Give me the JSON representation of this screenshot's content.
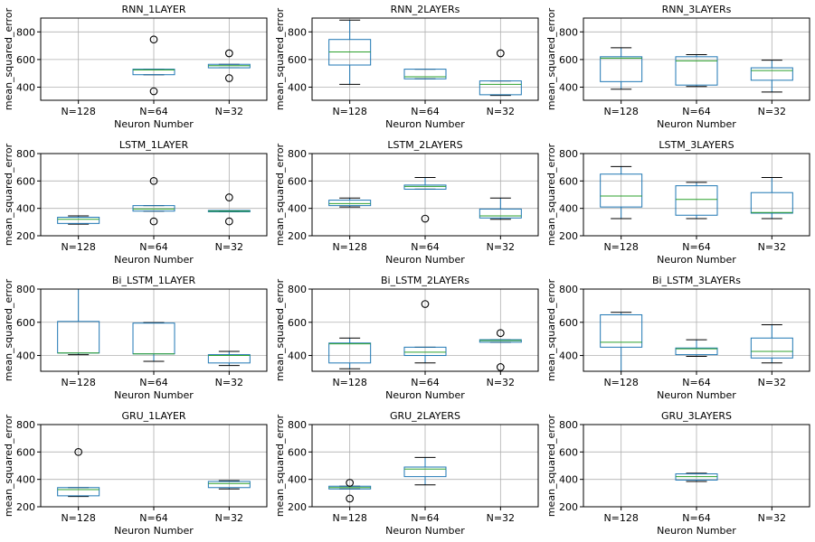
{
  "colors": {
    "box": "#1f77b4",
    "median": "#2ca02c",
    "grid": "#b0b0b0",
    "axis": "#000000",
    "flier": "#000000"
  },
  "chart_data": [
    {
      "type": "box",
      "title": "RNN_1LAYER",
      "xlabel": "Neuron Number",
      "ylabel": "mean_squared_error",
      "categories": [
        "N=128",
        "N=64",
        "N=32"
      ],
      "ylim": [
        305,
        900
      ],
      "yticks": [
        400,
        600,
        800
      ],
      "grid": true,
      "boxes": [
        null,
        {
          "whislo": 490,
          "q1": 490,
          "med": 525,
          "q3": 530,
          "whishi": 530,
          "fliers": [
            745,
            370
          ]
        },
        {
          "whislo": 540,
          "q1": 540,
          "med": 555,
          "q3": 565,
          "whishi": 565,
          "fliers": [
            645,
            465
          ]
        }
      ]
    },
    {
      "type": "box",
      "title": "RNN_2LAYERs",
      "xlabel": "Neuron Number",
      "ylabel": "mean_squared_error",
      "categories": [
        "N=128",
        "N=64",
        "N=32"
      ],
      "ylim": [
        305,
        900
      ],
      "yticks": [
        400,
        600,
        800
      ],
      "grid": true,
      "boxes": [
        {
          "whislo": 420,
          "q1": 560,
          "med": 655,
          "q3": 745,
          "whishi": 885,
          "fliers": []
        },
        {
          "whislo": 460,
          "q1": 460,
          "med": 475,
          "q3": 530,
          "whishi": 530,
          "fliers": []
        },
        {
          "whislo": 340,
          "q1": 345,
          "med": 420,
          "q3": 445,
          "whishi": 445,
          "fliers": [
            645
          ]
        }
      ]
    },
    {
      "type": "box",
      "title": "RNN_3LAYERs",
      "xlabel": "Neuron Number",
      "ylabel": "mean_squared_error",
      "categories": [
        "N=128",
        "N=64",
        "N=32"
      ],
      "ylim": [
        305,
        900
      ],
      "yticks": [
        400,
        600,
        800
      ],
      "grid": true,
      "boxes": [
        {
          "whislo": 385,
          "q1": 440,
          "med": 610,
          "q3": 620,
          "whishi": 685,
          "fliers": []
        },
        {
          "whislo": 405,
          "q1": 415,
          "med": 590,
          "q3": 620,
          "whishi": 635,
          "fliers": []
        },
        {
          "whislo": 365,
          "q1": 450,
          "med": 520,
          "q3": 540,
          "whishi": 595,
          "fliers": []
        }
      ]
    },
    {
      "type": "box",
      "title": "LSTM_1LAYER",
      "xlabel": "Neuron Number",
      "ylabel": "mean_squared_error",
      "categories": [
        "N=128",
        "N=64",
        "N=32"
      ],
      "ylim": [
        200,
        800
      ],
      "yticks": [
        200,
        400,
        600,
        800
      ],
      "grid": true,
      "boxes": [
        {
          "whislo": 285,
          "q1": 290,
          "med": 320,
          "q3": 335,
          "whishi": 345,
          "fliers": []
        },
        {
          "whislo": 380,
          "q1": 380,
          "med": 395,
          "q3": 420,
          "whishi": 420,
          "fliers": [
            600,
            305
          ]
        },
        {
          "whislo": 375,
          "q1": 375,
          "med": 380,
          "q3": 385,
          "whishi": 385,
          "fliers": [
            480,
            305
          ]
        }
      ]
    },
    {
      "type": "box",
      "title": "LSTM_2LAYERS",
      "xlabel": "Neuron Number",
      "ylabel": "mean_squared_error",
      "categories": [
        "N=128",
        "N=64",
        "N=32"
      ],
      "ylim": [
        200,
        800
      ],
      "yticks": [
        200,
        400,
        600,
        800
      ],
      "grid": true,
      "boxes": [
        {
          "whislo": 410,
          "q1": 420,
          "med": 435,
          "q3": 460,
          "whishi": 475,
          "fliers": []
        },
        {
          "whislo": 540,
          "q1": 540,
          "med": 560,
          "q3": 570,
          "whishi": 625,
          "fliers": [
            325
          ]
        },
        {
          "whislo": 320,
          "q1": 330,
          "med": 345,
          "q3": 395,
          "whishi": 475,
          "fliers": []
        }
      ]
    },
    {
      "type": "box",
      "title": "LSTM_3LAYERS",
      "xlabel": "Neuron Number",
      "ylabel": "mean_squared_error",
      "categories": [
        "N=128",
        "N=64",
        "N=32"
      ],
      "ylim": [
        200,
        800
      ],
      "yticks": [
        200,
        400,
        600,
        800
      ],
      "grid": true,
      "boxes": [
        {
          "whislo": 325,
          "q1": 410,
          "med": 490,
          "q3": 650,
          "whishi": 705,
          "fliers": []
        },
        {
          "whislo": 325,
          "q1": 350,
          "med": 465,
          "q3": 565,
          "whishi": 590,
          "fliers": []
        },
        {
          "whislo": 325,
          "q1": 365,
          "med": 370,
          "q3": 515,
          "whishi": 625,
          "fliers": []
        }
      ]
    },
    {
      "type": "box",
      "title": "Bi_LSTM_1LAYER",
      "xlabel": "Neuron Number",
      "ylabel": "mean_squared_error",
      "categories": [
        "N=128",
        "N=64",
        "N=32"
      ],
      "ylim": [
        305,
        800
      ],
      "yticks": [
        400,
        600,
        800
      ],
      "grid": true,
      "boxes": [
        {
          "whislo": 405,
          "q1": 415,
          "med": 415,
          "q3": 605,
          "whishi": 800,
          "fliers": []
        },
        {
          "whislo": 365,
          "q1": 410,
          "med": 410,
          "q3": 595,
          "whishi": 598,
          "fliers": []
        },
        {
          "whislo": 340,
          "q1": 355,
          "med": 400,
          "q3": 405,
          "whishi": 425,
          "fliers": []
        }
      ]
    },
    {
      "type": "box",
      "title": "Bi_LSTM_2LAYERs",
      "xlabel": "Neuron Number",
      "ylabel": "mean_squared_error",
      "categories": [
        "N=128",
        "N=64",
        "N=32"
      ],
      "ylim": [
        305,
        800
      ],
      "yticks": [
        400,
        600,
        800
      ],
      "grid": true,
      "boxes": [
        {
          "whislo": 320,
          "q1": 355,
          "med": 470,
          "q3": 475,
          "whishi": 505,
          "fliers": []
        },
        {
          "whislo": 355,
          "q1": 400,
          "med": 420,
          "q3": 450,
          "whishi": 450,
          "fliers": [
            710
          ]
        },
        {
          "whislo": 480,
          "q1": 480,
          "med": 490,
          "q3": 495,
          "whishi": 495,
          "fliers": [
            535,
            330
          ]
        }
      ]
    },
    {
      "type": "box",
      "title": "Bi_LSTM_3LAYERs",
      "xlabel": "Neuron Number",
      "ylabel": "mean_squared_error",
      "categories": [
        "N=128",
        "N=64",
        "N=32"
      ],
      "ylim": [
        305,
        800
      ],
      "yticks": [
        400,
        600,
        800
      ],
      "grid": true,
      "boxes": [
        {
          "whislo": 305,
          "q1": 450,
          "med": 480,
          "q3": 645,
          "whishi": 660,
          "fliers": []
        },
        {
          "whislo": 395,
          "q1": 405,
          "med": 440,
          "q3": 445,
          "whishi": 495,
          "fliers": []
        },
        {
          "whislo": 355,
          "q1": 385,
          "med": 425,
          "q3": 505,
          "whishi": 585,
          "fliers": []
        }
      ]
    },
    {
      "type": "box",
      "title": "GRU_1LAYER",
      "xlabel": "Neuron Number",
      "ylabel": "mean_squared_error",
      "categories": [
        "N=128",
        "N=64",
        "N=32"
      ],
      "ylim": [
        200,
        800
      ],
      "yticks": [
        200,
        400,
        600,
        800
      ],
      "grid": true,
      "boxes": [
        {
          "whislo": 275,
          "q1": 280,
          "med": 325,
          "q3": 340,
          "whishi": 340,
          "fliers": [
            600
          ]
        },
        null,
        {
          "whislo": 330,
          "q1": 340,
          "med": 370,
          "q3": 385,
          "whishi": 390,
          "fliers": []
        }
      ]
    },
    {
      "type": "box",
      "title": "GRU_2LAYERS",
      "xlabel": "Neuron Number",
      "ylabel": "mean_squared_error",
      "categories": [
        "N=128",
        "N=64",
        "N=32"
      ],
      "ylim": [
        200,
        800
      ],
      "yticks": [
        200,
        400,
        600,
        800
      ],
      "grid": true,
      "boxes": [
        {
          "whislo": 330,
          "q1": 330,
          "med": 340,
          "q3": 350,
          "whishi": 350,
          "fliers": [
            375,
            260
          ]
        },
        {
          "whislo": 360,
          "q1": 420,
          "med": 475,
          "q3": 490,
          "whishi": 560,
          "fliers": []
        },
        null
      ]
    },
    {
      "type": "box",
      "title": "GRU_3LAYERS",
      "xlabel": "Neuron Number",
      "ylabel": "mean_squared_error",
      "categories": [
        "N=128",
        "N=64",
        "N=32"
      ],
      "ylim": [
        200,
        800
      ],
      "yticks": [
        200,
        400,
        600,
        800
      ],
      "grid": true,
      "boxes": [
        null,
        {
          "whislo": 385,
          "q1": 395,
          "med": 420,
          "q3": 440,
          "whishi": 445,
          "fliers": []
        },
        null
      ]
    }
  ]
}
